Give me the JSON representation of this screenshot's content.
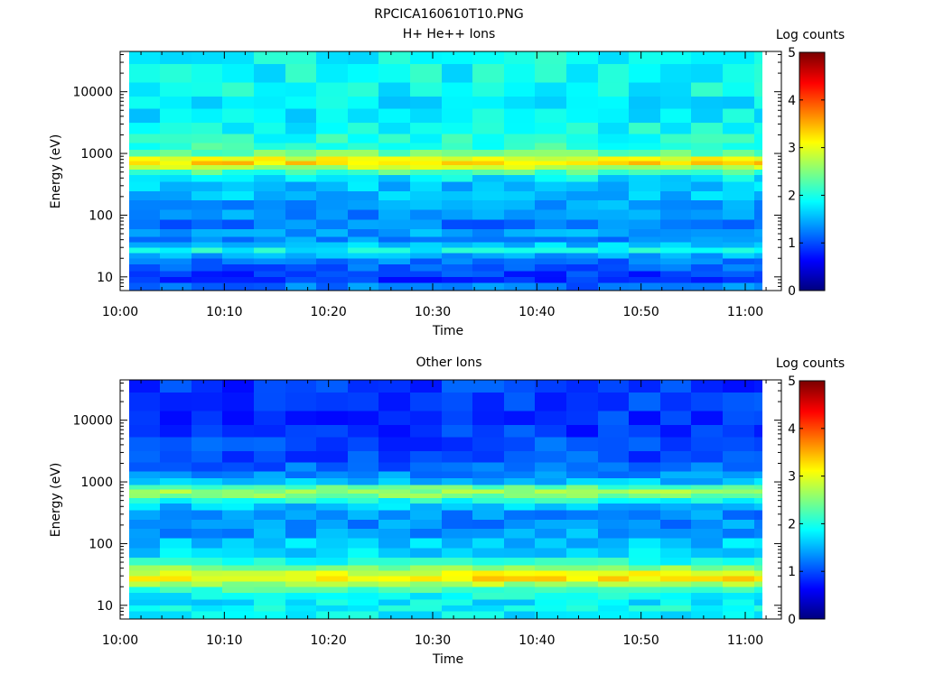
{
  "figure": {
    "title": "RPCICA160610T10.PNG"
  },
  "chart_data": [
    {
      "type": "heatmap",
      "title": "H+ He++ Ions",
      "xlabel": "Time",
      "ylabel": "Energy (eV)",
      "x_ticks": [
        "10:00",
        "10:10",
        "10:20",
        "10:30",
        "10:40",
        "10:50",
        "11:00"
      ],
      "y_scale": "log",
      "y_ticks": [
        "10",
        "100",
        "1000",
        "10000"
      ],
      "ylim": [
        6,
        45000
      ],
      "colorbar": {
        "label": "Log counts",
        "ticks": [
          "0",
          "1",
          "2",
          "3",
          "4",
          "5"
        ],
        "range": [
          0,
          5
        ]
      },
      "colormap": "jet",
      "grid": false,
      "time_bins": [
        "10:00",
        "10:03",
        "10:06",
        "10:09",
        "10:12",
        "10:15",
        "10:18",
        "10:21",
        "10:24",
        "10:27",
        "10:30",
        "10:33",
        "10:36",
        "10:39",
        "10:42",
        "10:45",
        "10:48",
        "10:51",
        "10:54",
        "10:57",
        "11:00"
      ],
      "energy_profile": {
        "energy_eV": [
          7,
          9,
          11,
          14,
          18,
          22,
          27,
          33,
          40,
          50,
          70,
          100,
          150,
          200,
          300,
          400,
          500,
          600,
          700,
          800,
          1000,
          1300,
          1700,
          2500,
          4000,
          7000,
          10000,
          20000,
          40000
        ],
        "log_counts": [
          1.2,
          0.8,
          0.9,
          1.1,
          1.2,
          1.5,
          1.9,
          1.6,
          1.3,
          1.4,
          1.2,
          1.3,
          1.4,
          1.6,
          1.6,
          1.8,
          2.2,
          2.8,
          3.3,
          3.0,
          2.4,
          2.1,
          2.0,
          1.9,
          1.8,
          1.8,
          1.9,
          1.9,
          1.9
        ]
      }
    },
    {
      "type": "heatmap",
      "title": "Other Ions",
      "xlabel": "Time",
      "ylabel": "Energy (eV)",
      "x_ticks": [
        "10:00",
        "10:10",
        "10:20",
        "10:30",
        "10:40",
        "10:50",
        "11:00"
      ],
      "y_scale": "log",
      "y_ticks": [
        "10",
        "100",
        "1000",
        "10000"
      ],
      "ylim": [
        6,
        45000
      ],
      "colorbar": {
        "label": "Log counts",
        "ticks": [
          "0",
          "1",
          "2",
          "3",
          "4",
          "5"
        ],
        "range": [
          0,
          5
        ]
      },
      "colormap": "jet",
      "grid": false,
      "time_bins": [
        "10:00",
        "10:03",
        "10:06",
        "10:09",
        "10:12",
        "10:15",
        "10:18",
        "10:21",
        "10:24",
        "10:27",
        "10:30",
        "10:33",
        "10:36",
        "10:39",
        "10:42",
        "10:45",
        "10:48",
        "10:51",
        "10:54",
        "10:57",
        "11:00"
      ],
      "energy_profile": {
        "energy_eV": [
          7,
          9,
          11,
          14,
          18,
          22,
          27,
          33,
          40,
          50,
          70,
          100,
          150,
          200,
          300,
          400,
          500,
          600,
          700,
          800,
          1000,
          1300,
          1700,
          2500,
          4000,
          7000,
          10000,
          20000,
          40000
        ],
        "log_counts": [
          1.8,
          1.9,
          1.8,
          1.9,
          2.2,
          2.7,
          3.2,
          3.0,
          2.5,
          2.0,
          1.7,
          1.6,
          1.4,
          1.3,
          1.3,
          1.6,
          2.0,
          2.5,
          2.6,
          2.3,
          1.6,
          1.3,
          1.1,
          1.0,
          1.0,
          0.9,
          0.9,
          0.9,
          0.9
        ]
      }
    }
  ]
}
